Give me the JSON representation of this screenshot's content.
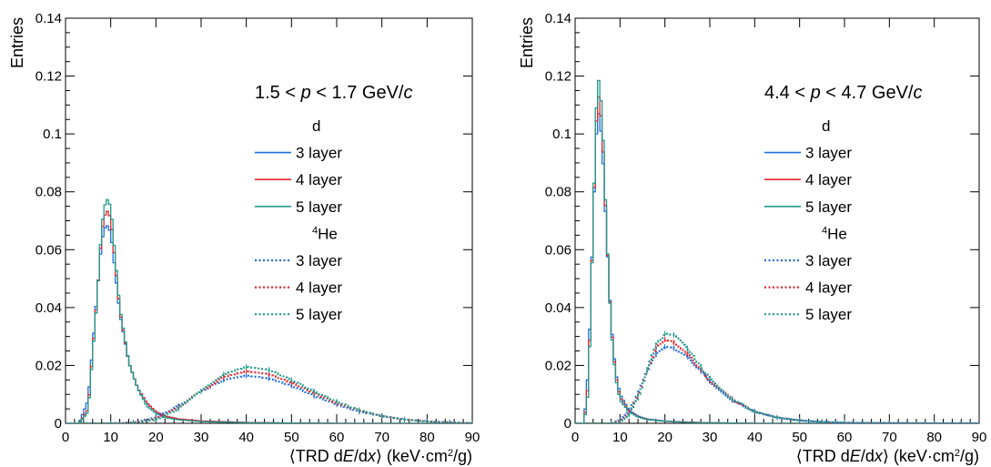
{
  "figure": {
    "y_axis_label": "Entries",
    "x_axis_label": "⟨TRD dE/dx⟩ (keV·cm²/g)",
    "x_axis_label_parts": [
      "⟨TRD d",
      "E",
      "/d",
      "x",
      "⟩ (keV·cm",
      "2",
      "/g)"
    ]
  },
  "legend": {
    "deuteron_header": "d",
    "helium_header": "⁴He",
    "helium_header_sup": "4",
    "helium_header_base": "He",
    "entries": [
      "3 layer",
      "4 layer",
      "5 layer"
    ],
    "colors": [
      "#1f6fe0",
      "#e8262b",
      "#1f9a8c"
    ]
  },
  "chart_data": [
    {
      "type": "line",
      "title": "1.5 < p < 1.7 GeV/c",
      "title_parts": [
        "1.5 < ",
        "p",
        " < 1.7 GeV/",
        "c"
      ],
      "xlabel": "⟨TRD dE/dx⟩ (keV·cm²/g)",
      "ylabel": "Entries",
      "xlim": [
        0,
        90
      ],
      "ylim": [
        0,
        0.14
      ],
      "xticks": [
        0,
        10,
        20,
        30,
        40,
        50,
        60,
        70,
        80,
        90
      ],
      "yticks": [
        0,
        0.02,
        0.04,
        0.06,
        0.08,
        0.1,
        0.12,
        0.14
      ],
      "ytick_labels": [
        "0",
        "0.02",
        "0.04",
        "0.06",
        "0.08",
        "0.1",
        "0.12",
        "0.14"
      ],
      "grid": false,
      "legend_position": "right",
      "series": [
        {
          "name": "d 3 layer",
          "style": "solid",
          "color": "#1f6fe0",
          "x": [
            3,
            5,
            7,
            8,
            9,
            10,
            11,
            12,
            14,
            16,
            18,
            20,
            22,
            25,
            30,
            40,
            50,
            60
          ],
          "y": [
            0,
            0.008,
            0.045,
            0.063,
            0.069,
            0.066,
            0.052,
            0.038,
            0.021,
            0.012,
            0.007,
            0.004,
            0.0025,
            0.0015,
            0.0008,
            0.0003,
            0.0001,
            0
          ]
        },
        {
          "name": "d 4 layer",
          "style": "solid",
          "color": "#e8262b",
          "x": [
            3,
            5,
            7,
            8,
            9,
            10,
            11,
            12,
            14,
            16,
            18,
            20,
            22,
            25,
            30,
            40,
            50,
            60
          ],
          "y": [
            0,
            0.005,
            0.044,
            0.066,
            0.074,
            0.071,
            0.055,
            0.039,
            0.021,
            0.012,
            0.007,
            0.004,
            0.0025,
            0.0015,
            0.0008,
            0.0003,
            0.0001,
            0
          ]
        },
        {
          "name": "d 5 layer",
          "style": "solid",
          "color": "#1f9a8c",
          "x": [
            3,
            5,
            7,
            8,
            9,
            10,
            11,
            12,
            14,
            16,
            18,
            20,
            22,
            25,
            30,
            40,
            50,
            60
          ],
          "y": [
            0,
            0.004,
            0.043,
            0.068,
            0.078,
            0.075,
            0.057,
            0.04,
            0.021,
            0.012,
            0.006,
            0.0035,
            0.002,
            0.0012,
            0.0006,
            0.0002,
            0.0001,
            0
          ]
        },
        {
          "name": "⁴He 3 layer",
          "style": "dotted",
          "color": "#1f6fe0",
          "x": [
            10,
            15,
            20,
            25,
            30,
            35,
            40,
            45,
            50,
            55,
            60,
            65,
            70,
            75,
            80,
            85,
            90
          ],
          "y": [
            0,
            0.0003,
            0.002,
            0.006,
            0.011,
            0.015,
            0.0165,
            0.0155,
            0.013,
            0.0095,
            0.0065,
            0.004,
            0.0025,
            0.0013,
            0.0007,
            0.0003,
            0.0001
          ]
        },
        {
          "name": "⁴He 4 layer",
          "style": "dotted",
          "color": "#e8262b",
          "x": [
            10,
            15,
            20,
            25,
            30,
            35,
            40,
            45,
            50,
            55,
            60,
            65,
            70,
            75,
            80,
            85,
            90
          ],
          "y": [
            0,
            0.0002,
            0.0015,
            0.0055,
            0.011,
            0.016,
            0.018,
            0.017,
            0.014,
            0.0105,
            0.007,
            0.0045,
            0.0025,
            0.0013,
            0.0007,
            0.0003,
            0.0001
          ]
        },
        {
          "name": "⁴He 5 layer",
          "style": "dotted",
          "color": "#1f9a8c",
          "x": [
            10,
            15,
            20,
            25,
            30,
            35,
            40,
            45,
            50,
            55,
            60,
            65,
            70,
            75,
            80,
            85,
            90
          ],
          "y": [
            0,
            0.0001,
            0.0012,
            0.005,
            0.011,
            0.017,
            0.0195,
            0.0185,
            0.015,
            0.011,
            0.0075,
            0.0045,
            0.0025,
            0.0013,
            0.0006,
            0.0003,
            0.0001
          ]
        }
      ]
    },
    {
      "type": "line",
      "title": "4.4 < p < 4.7 GeV/c",
      "title_parts": [
        "4.4 < ",
        "p",
        " < 4.7 GeV/",
        "c"
      ],
      "xlabel": "⟨TRD dE/dx⟩ (keV·cm²/g)",
      "ylabel": "Entries",
      "xlim": [
        0,
        90
      ],
      "ylim": [
        0,
        0.14
      ],
      "xticks": [
        0,
        10,
        20,
        30,
        40,
        50,
        60,
        70,
        80,
        90
      ],
      "yticks": [
        0,
        0.02,
        0.04,
        0.06,
        0.08,
        0.1,
        0.12,
        0.14
      ],
      "ytick_labels": [
        "0",
        "0.02",
        "0.04",
        "0.06",
        "0.08",
        "0.1",
        "0.12",
        "0.14"
      ],
      "grid": false,
      "legend_position": "right",
      "series": [
        {
          "name": "d 3 layer",
          "style": "solid",
          "color": "#1f6fe0",
          "x": [
            2,
            3,
            4,
            5,
            6,
            7,
            8,
            9,
            10,
            12,
            14,
            16,
            20,
            25,
            30,
            40
          ],
          "y": [
            0,
            0.02,
            0.07,
            0.11,
            0.098,
            0.065,
            0.035,
            0.018,
            0.01,
            0.0045,
            0.0025,
            0.0015,
            0.0008,
            0.0004,
            0.0002,
            0
          ]
        },
        {
          "name": "d 4 layer",
          "style": "solid",
          "color": "#e8262b",
          "x": [
            2,
            3,
            4,
            5,
            6,
            7,
            8,
            9,
            10,
            12,
            14,
            16,
            20,
            25,
            30,
            40
          ],
          "y": [
            0,
            0.015,
            0.07,
            0.116,
            0.103,
            0.066,
            0.034,
            0.017,
            0.009,
            0.0042,
            0.0023,
            0.0014,
            0.0007,
            0.0004,
            0.0002,
            0
          ]
        },
        {
          "name": "d 5 layer",
          "style": "solid",
          "color": "#1f9a8c",
          "x": [
            2,
            3,
            4,
            5,
            6,
            7,
            8,
            9,
            10,
            12,
            14,
            16,
            20,
            25,
            30,
            40
          ],
          "y": [
            0,
            0.012,
            0.07,
            0.122,
            0.108,
            0.067,
            0.033,
            0.016,
            0.008,
            0.004,
            0.0022,
            0.0013,
            0.0007,
            0.0003,
            0.0002,
            0
          ]
        },
        {
          "name": "⁴He 3 layer",
          "style": "dotted",
          "color": "#1f6fe0",
          "x": [
            8,
            10,
            12,
            14,
            16,
            18,
            20,
            22,
            25,
            28,
            30,
            35,
            40,
            45,
            50,
            55,
            60,
            70,
            80
          ],
          "y": [
            0,
            0.001,
            0.004,
            0.01,
            0.018,
            0.024,
            0.0265,
            0.026,
            0.023,
            0.018,
            0.0145,
            0.008,
            0.004,
            0.002,
            0.001,
            0.0005,
            0.0002,
            0.0001,
            0
          ]
        },
        {
          "name": "⁴He 4 layer",
          "style": "dotted",
          "color": "#e8262b",
          "x": [
            8,
            10,
            12,
            14,
            16,
            18,
            20,
            22,
            25,
            28,
            30,
            35,
            40,
            45,
            50,
            55,
            60,
            70,
            80
          ],
          "y": [
            0,
            0.0008,
            0.0035,
            0.0095,
            0.018,
            0.026,
            0.029,
            0.028,
            0.024,
            0.0185,
            0.015,
            0.0082,
            0.004,
            0.002,
            0.001,
            0.0005,
            0.0002,
            0.0001,
            0
          ]
        },
        {
          "name": "⁴He 5 layer",
          "style": "dotted",
          "color": "#1f9a8c",
          "x": [
            8,
            10,
            12,
            14,
            16,
            18,
            20,
            22,
            25,
            28,
            30,
            35,
            40,
            45,
            50,
            55,
            60,
            70,
            80
          ],
          "y": [
            0,
            0.0005,
            0.003,
            0.009,
            0.018,
            0.027,
            0.031,
            0.0305,
            0.026,
            0.0195,
            0.0155,
            0.0085,
            0.004,
            0.002,
            0.001,
            0.0005,
            0.0002,
            0.0001,
            0
          ]
        }
      ]
    }
  ]
}
